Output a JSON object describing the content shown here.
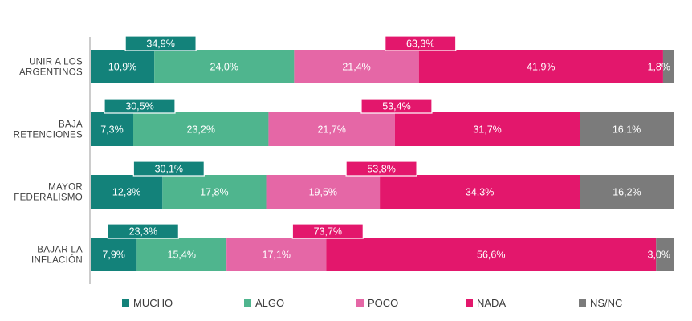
{
  "chart_data": {
    "type": "bar",
    "orientation": "horizontal",
    "stacked": true,
    "categories": [
      [
        "UNIR A LOS",
        "ARGENTINOS"
      ],
      [
        "BAJA",
        "RETENCIONES"
      ],
      [
        "MAYOR",
        "FEDERALISMO"
      ],
      [
        "BAJAR LA",
        "INFLACIÓN"
      ]
    ],
    "series": [
      {
        "name": "MUCHO",
        "color": "#13827a",
        "values": [
          10.9,
          7.3,
          12.3,
          7.9
        ],
        "labels": [
          "10,9%",
          "7,3%",
          "12,3%",
          "7,9%"
        ]
      },
      {
        "name": "ALGO",
        "color": "#4fb58e",
        "values": [
          24.0,
          23.2,
          17.8,
          15.4
        ],
        "labels": [
          "24,0%",
          "23,2%",
          "17,8%",
          "15,4%"
        ]
      },
      {
        "name": "POCO",
        "color": "#e567a6",
        "values": [
          21.4,
          21.7,
          19.5,
          17.1
        ],
        "labels": [
          "21,4%",
          "21,7%",
          "19,5%",
          "17,1%"
        ]
      },
      {
        "name": "NADA",
        "color": "#e3176c",
        "values": [
          41.9,
          31.7,
          34.3,
          56.6
        ],
        "labels": [
          "41,9%",
          "31,7%",
          "34,3%",
          "56,6%"
        ]
      },
      {
        "name": "NS/NC",
        "color": "#7b7b7b",
        "values": [
          1.8,
          16.1,
          16.2,
          3.0
        ],
        "labels": [
          "1,8%",
          "16,1%",
          "16,2%",
          "3,0%"
        ]
      }
    ],
    "annotations": {
      "positive_totals": {
        "color": "#13827a",
        "values": [
          34.9,
          30.5,
          30.1,
          23.3
        ],
        "labels": [
          "34,9%",
          "30,5%",
          "30,1%",
          "23,3%"
        ]
      },
      "negative_totals": {
        "color": "#e3176c",
        "values": [
          63.3,
          53.4,
          53.8,
          73.7
        ],
        "labels": [
          "63,3%",
          "53,4%",
          "53,8%",
          "73,7%"
        ]
      }
    },
    "xlim": [
      0,
      100
    ],
    "grid": false,
    "legend_position": "bottom"
  }
}
